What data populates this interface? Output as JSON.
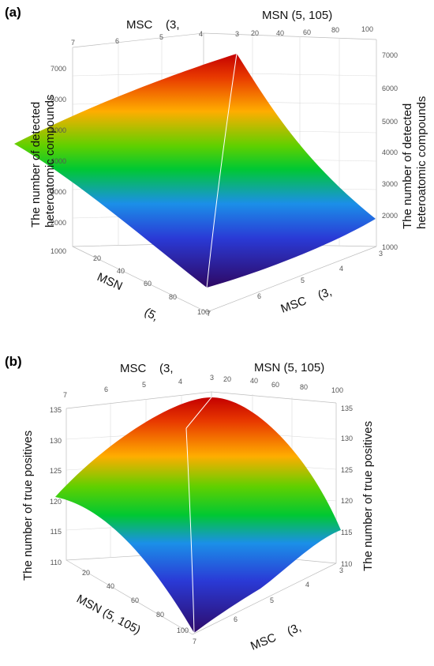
{
  "chart_data": [
    {
      "panel_label": "(a)",
      "type": "surface3d",
      "zlabel_left": "The number of detected heteroatomic compounds",
      "zlabel_right": "The number of detected heteroatomic compounds",
      "top_left_axis_title": "MSC    (3,",
      "top_right_axis_title": "MSN (5, 105)",
      "bottom_left_axis_title": "MSN",
      "bottom_left_axis_title_extra": "(5,",
      "bottom_right_axis_title": "MSC    (3,",
      "msn_ticks": [
        "20",
        "40",
        "60",
        "80",
        "100"
      ],
      "msc_ticks": [
        "3",
        "4",
        "5",
        "6",
        "7"
      ],
      "top_msc_ticks": [
        "7",
        "6",
        "5",
        "4",
        "3"
      ],
      "top_msn_ticks": [
        "20",
        "40",
        "60",
        "80",
        "100"
      ],
      "z_ticks_left": [
        "1000",
        "2000",
        "3000",
        "4000",
        "5000",
        "6000",
        "7000"
      ],
      "z_ticks_right": [
        "1000",
        "2000",
        "3000",
        "4000",
        "5000",
        "6000",
        "7000"
      ],
      "zlim": [
        1000,
        7000
      ],
      "corners": [
        {
          "MSN": 5,
          "MSC": 3,
          "value": 7100
        },
        {
          "MSN": 105,
          "MSC": 3,
          "value": 1950
        },
        {
          "MSN": 105,
          "MSC": 7,
          "value": 1000
        },
        {
          "MSN": 5,
          "MSC": 7,
          "value": 4500
        }
      ],
      "colormap": [
        "#2b0a68",
        "#1e3fd0",
        "#1aa0e0",
        "#00c832",
        "#7ed000",
        "#ffb000",
        "#d40000"
      ]
    },
    {
      "panel_label": "(b)",
      "type": "surface3d",
      "zlabel_left": "The number of true positives",
      "zlabel_right": "The number of true positives",
      "top_left_axis_title": "MSC    (3,",
      "top_right_axis_title": "MSN (5, 105)",
      "bottom_left_axis_title": "MSN (5, 105)",
      "bottom_right_axis_title": "MSC    (3,",
      "msn_ticks": [
        "20",
        "40",
        "60",
        "80",
        "100"
      ],
      "msc_ticks": [
        "3",
        "4",
        "5",
        "6",
        "7"
      ],
      "top_msc_ticks": [
        "7",
        "6",
        "5",
        "4",
        "3"
      ],
      "top_msn_ticks": [
        "20",
        "40",
        "60",
        "80",
        "100"
      ],
      "z_ticks_left": [
        "110",
        "115",
        "120",
        "125",
        "130",
        "135"
      ],
      "z_ticks_right": [
        "110",
        "115",
        "120",
        "125",
        "130",
        "135"
      ],
      "zlim": [
        110,
        135
      ],
      "corners": [
        {
          "MSN": 5,
          "MSC": 3,
          "value": 136
        },
        {
          "MSN": 105,
          "MSC": 3,
          "value": 117.5
        },
        {
          "MSN": 105,
          "MSC": 7,
          "value": 110
        },
        {
          "MSN": 5,
          "MSC": 7,
          "value": 119
        }
      ],
      "colormap": [
        "#2b0a68",
        "#1e3fd0",
        "#1aa0e0",
        "#00c832",
        "#7ed000",
        "#ffb000",
        "#d40000"
      ]
    }
  ]
}
